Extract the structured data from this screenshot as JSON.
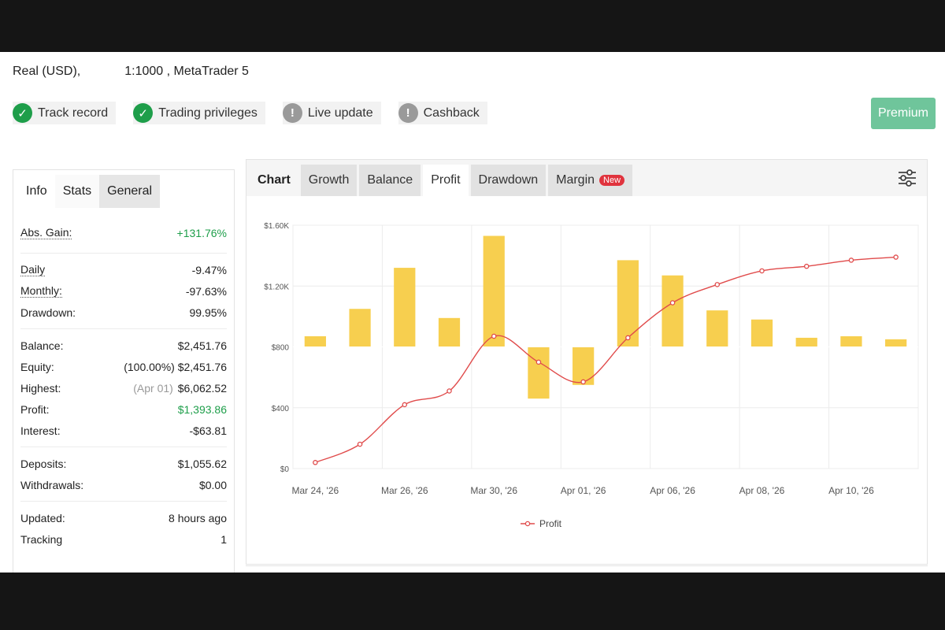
{
  "account": {
    "type": "Real (USD),",
    "leverage": "1:1000 , MetaTrader 5"
  },
  "badges": [
    {
      "label": "Track record",
      "icon": "check-circle-icon",
      "status": "ok"
    },
    {
      "label": "Trading privileges",
      "icon": "check-circle-icon",
      "status": "ok"
    },
    {
      "label": "Live update",
      "icon": "warning-circle-icon",
      "status": "warn"
    },
    {
      "label": "Cashback",
      "icon": "warning-circle-icon",
      "status": "warn"
    }
  ],
  "premium_label": "Premium",
  "stats_tabs": [
    "Info",
    "Stats",
    "General"
  ],
  "stats": {
    "abs_gain": {
      "label": "Abs. Gain:",
      "value": "+131.76%"
    },
    "daily": {
      "label": "Daily",
      "value": "-9.47%"
    },
    "monthly": {
      "label": "Monthly:",
      "value": "-97.63%"
    },
    "drawdown": {
      "label": "Drawdown:",
      "value": "99.95%"
    },
    "balance": {
      "label": "Balance:",
      "value": "$2,451.76"
    },
    "equity": {
      "label": "Equity:",
      "pre": "(100.00%)",
      "value": "$2,451.76"
    },
    "highest": {
      "label": "Highest:",
      "pre": "(Apr 01)",
      "value": "$6,062.52"
    },
    "profit": {
      "label": "Profit:",
      "value": "$1,393.86"
    },
    "interest": {
      "label": "Interest:",
      "value": "-$63.81"
    },
    "deposits": {
      "label": "Deposits:",
      "value": "$1,055.62"
    },
    "withdrawals": {
      "label": "Withdrawals:",
      "value": "$0.00"
    },
    "updated": {
      "label": "Updated:",
      "value": "8 hours ago"
    },
    "tracking": {
      "label": "Tracking",
      "value": "1"
    }
  },
  "chart_tabs": {
    "label": "Chart",
    "items": [
      "Growth",
      "Balance",
      "Profit",
      "Drawdown",
      "Margin"
    ],
    "active": "Profit",
    "new_tag": "New"
  },
  "colors": {
    "bar": "#f7cf4f",
    "line": "#e04b4b",
    "green": "#1e9e4a",
    "premium": "#6fc59b"
  },
  "chart_data": {
    "type": "bar",
    "title": "",
    "ylim": [
      0,
      1600
    ],
    "yticks": [
      "$0",
      "$400",
      "$800",
      "$1.20K",
      "$1.60K"
    ],
    "ytick_values": [
      0,
      400,
      800,
      1200,
      1600
    ],
    "xtick_labels": [
      "Mar 24, '26",
      "Mar 26, '26",
      "Mar 30, '26",
      "Apr 01, '26",
      "Apr 06, '26",
      "Apr 08, '26",
      "Apr 10, '26"
    ],
    "baseline": 800,
    "series": [
      {
        "name": "",
        "type": "bar",
        "values": [
          870,
          1050,
          1320,
          990,
          1530,
          460,
          550,
          1370,
          1270,
          1040,
          980,
          860,
          870,
          850
        ]
      },
      {
        "name": "Profit",
        "type": "line",
        "values": [
          40,
          160,
          420,
          510,
          870,
          700,
          570,
          860,
          1090,
          1210,
          1300,
          1330,
          1370,
          1390
        ]
      }
    ],
    "grid": true,
    "legend": "bottom"
  }
}
